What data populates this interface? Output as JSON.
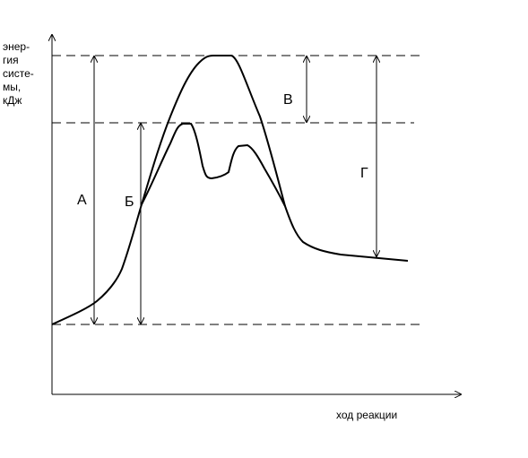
{
  "y_axis_label": [
    "энер-",
    "гия",
    "систе-",
    "мы,",
    "кДж"
  ],
  "x_axis_label": "ход реакции",
  "labels": {
    "a": "А",
    "b": "Б",
    "v": "В",
    "g": "Г"
  }
}
